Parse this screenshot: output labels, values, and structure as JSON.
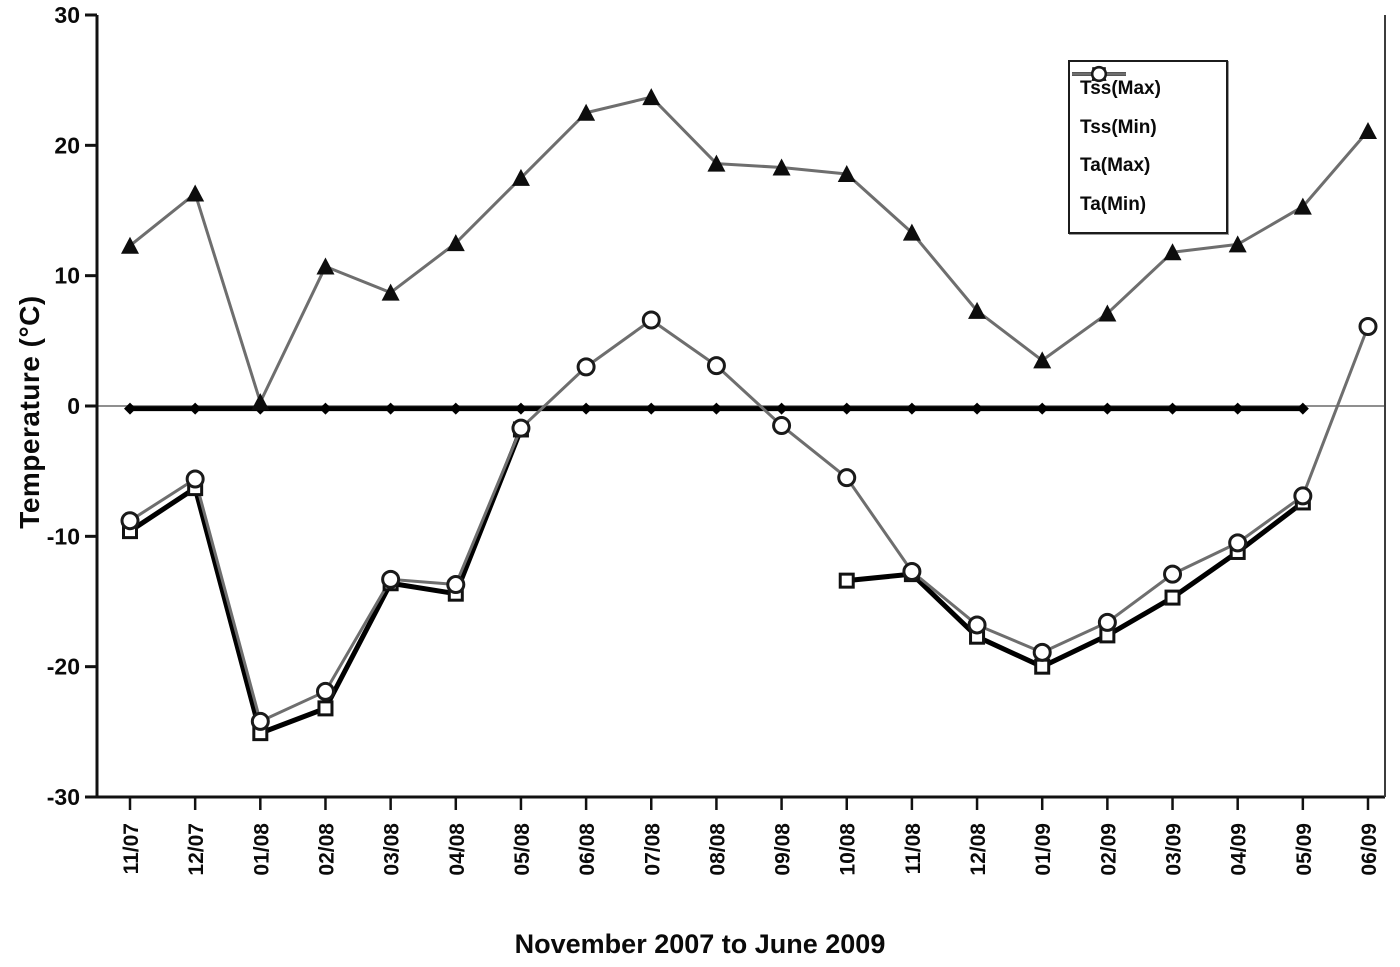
{
  "chart_data": {
    "type": "line",
    "title": "",
    "xlabel": "November 2007 to June 2009",
    "ylabel": "Temperature (°C)",
    "ylim": [
      -30,
      30
    ],
    "yticks": [
      30,
      20,
      10,
      0,
      -10,
      -20,
      -30
    ],
    "zero_gridline": true,
    "grid": "zero line only",
    "legend_position": "top-right",
    "categories": [
      "11/07",
      "12/07",
      "01/08",
      "02/08",
      "03/08",
      "04/08",
      "05/08",
      "06/08",
      "07/08",
      "08/08",
      "09/08",
      "10/08",
      "11/08",
      "12/08",
      "01/09",
      "02/09",
      "03/09",
      "04/09",
      "05/09",
      "06/09"
    ],
    "series": [
      {
        "name": "Tss(Max)",
        "marker": "filled-diamond",
        "color": "#000000",
        "line_width": 5,
        "values": [
          -0.2,
          -0.2,
          -0.2,
          -0.2,
          -0.2,
          -0.2,
          -0.2,
          -0.2,
          -0.2,
          -0.2,
          -0.2,
          -0.2,
          -0.2,
          -0.2,
          -0.2,
          -0.2,
          -0.2,
          -0.2,
          -0.2,
          null
        ]
      },
      {
        "name": "Tss(Min)",
        "marker": "open-square",
        "color": "#000000",
        "line_width": 5,
        "values": [
          -9.6,
          -6.3,
          -25.1,
          -23.2,
          -13.6,
          -14.4,
          -1.8,
          null,
          null,
          null,
          null,
          -13.4,
          -12.9,
          -17.7,
          -20.0,
          -17.6,
          -14.7,
          -11.2,
          -7.4,
          null
        ]
      },
      {
        "name": "Ta(Max)",
        "marker": "filled-triangle",
        "color": "#6e6e6e",
        "line_width": 3,
        "values": [
          12.3,
          16.3,
          0.3,
          10.7,
          8.7,
          12.5,
          17.5,
          22.5,
          23.7,
          18.6,
          18.3,
          17.8,
          13.3,
          7.3,
          3.5,
          7.1,
          11.8,
          12.4,
          15.3,
          21.1
        ]
      },
      {
        "name": "Ta(Min)",
        "marker": "open-circle",
        "color": "#6e6e6e",
        "line_width": 3,
        "values": [
          -8.8,
          -5.6,
          -24.2,
          -21.9,
          -13.3,
          -13.7,
          -1.7,
          3.0,
          6.6,
          3.1,
          -1.5,
          -5.5,
          -12.7,
          -16.8,
          -18.9,
          -16.6,
          -12.9,
          -10.5,
          -6.9,
          6.1
        ]
      }
    ]
  }
}
